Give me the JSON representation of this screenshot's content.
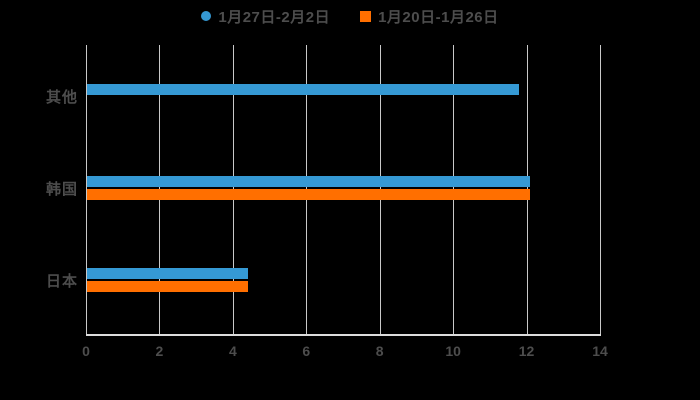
{
  "colors": {
    "background": "#000000",
    "series1": "#3599d4",
    "series2": "#ff6f00",
    "grid": "#c9c9c9",
    "axis": "#dcdcdc",
    "text": "#4d4d4d"
  },
  "legend": {
    "items": [
      {
        "label": "1月27日-2月2日",
        "marker": "circle",
        "color": "#3599d4"
      },
      {
        "label": "1月20日-1月26日",
        "marker": "square",
        "color": "#ff6f00"
      }
    ]
  },
  "chart_data": {
    "type": "bar",
    "orientation": "horizontal",
    "categories": [
      "其他",
      "韩国",
      "日本"
    ],
    "series": [
      {
        "name": "1月27日-2月2日",
        "color": "#3599d4",
        "marker": "circle",
        "values": [
          11.8,
          12.1,
          4.4
        ]
      },
      {
        "name": "1月20日-1月26日",
        "color": "#ff6f00",
        "marker": "square",
        "values": [
          null,
          12.1,
          4.4
        ]
      }
    ],
    "xlim": [
      0,
      14
    ],
    "xticks": [
      0,
      2,
      4,
      6,
      8,
      10,
      12,
      14
    ],
    "grid": true,
    "legend_position": "top"
  }
}
